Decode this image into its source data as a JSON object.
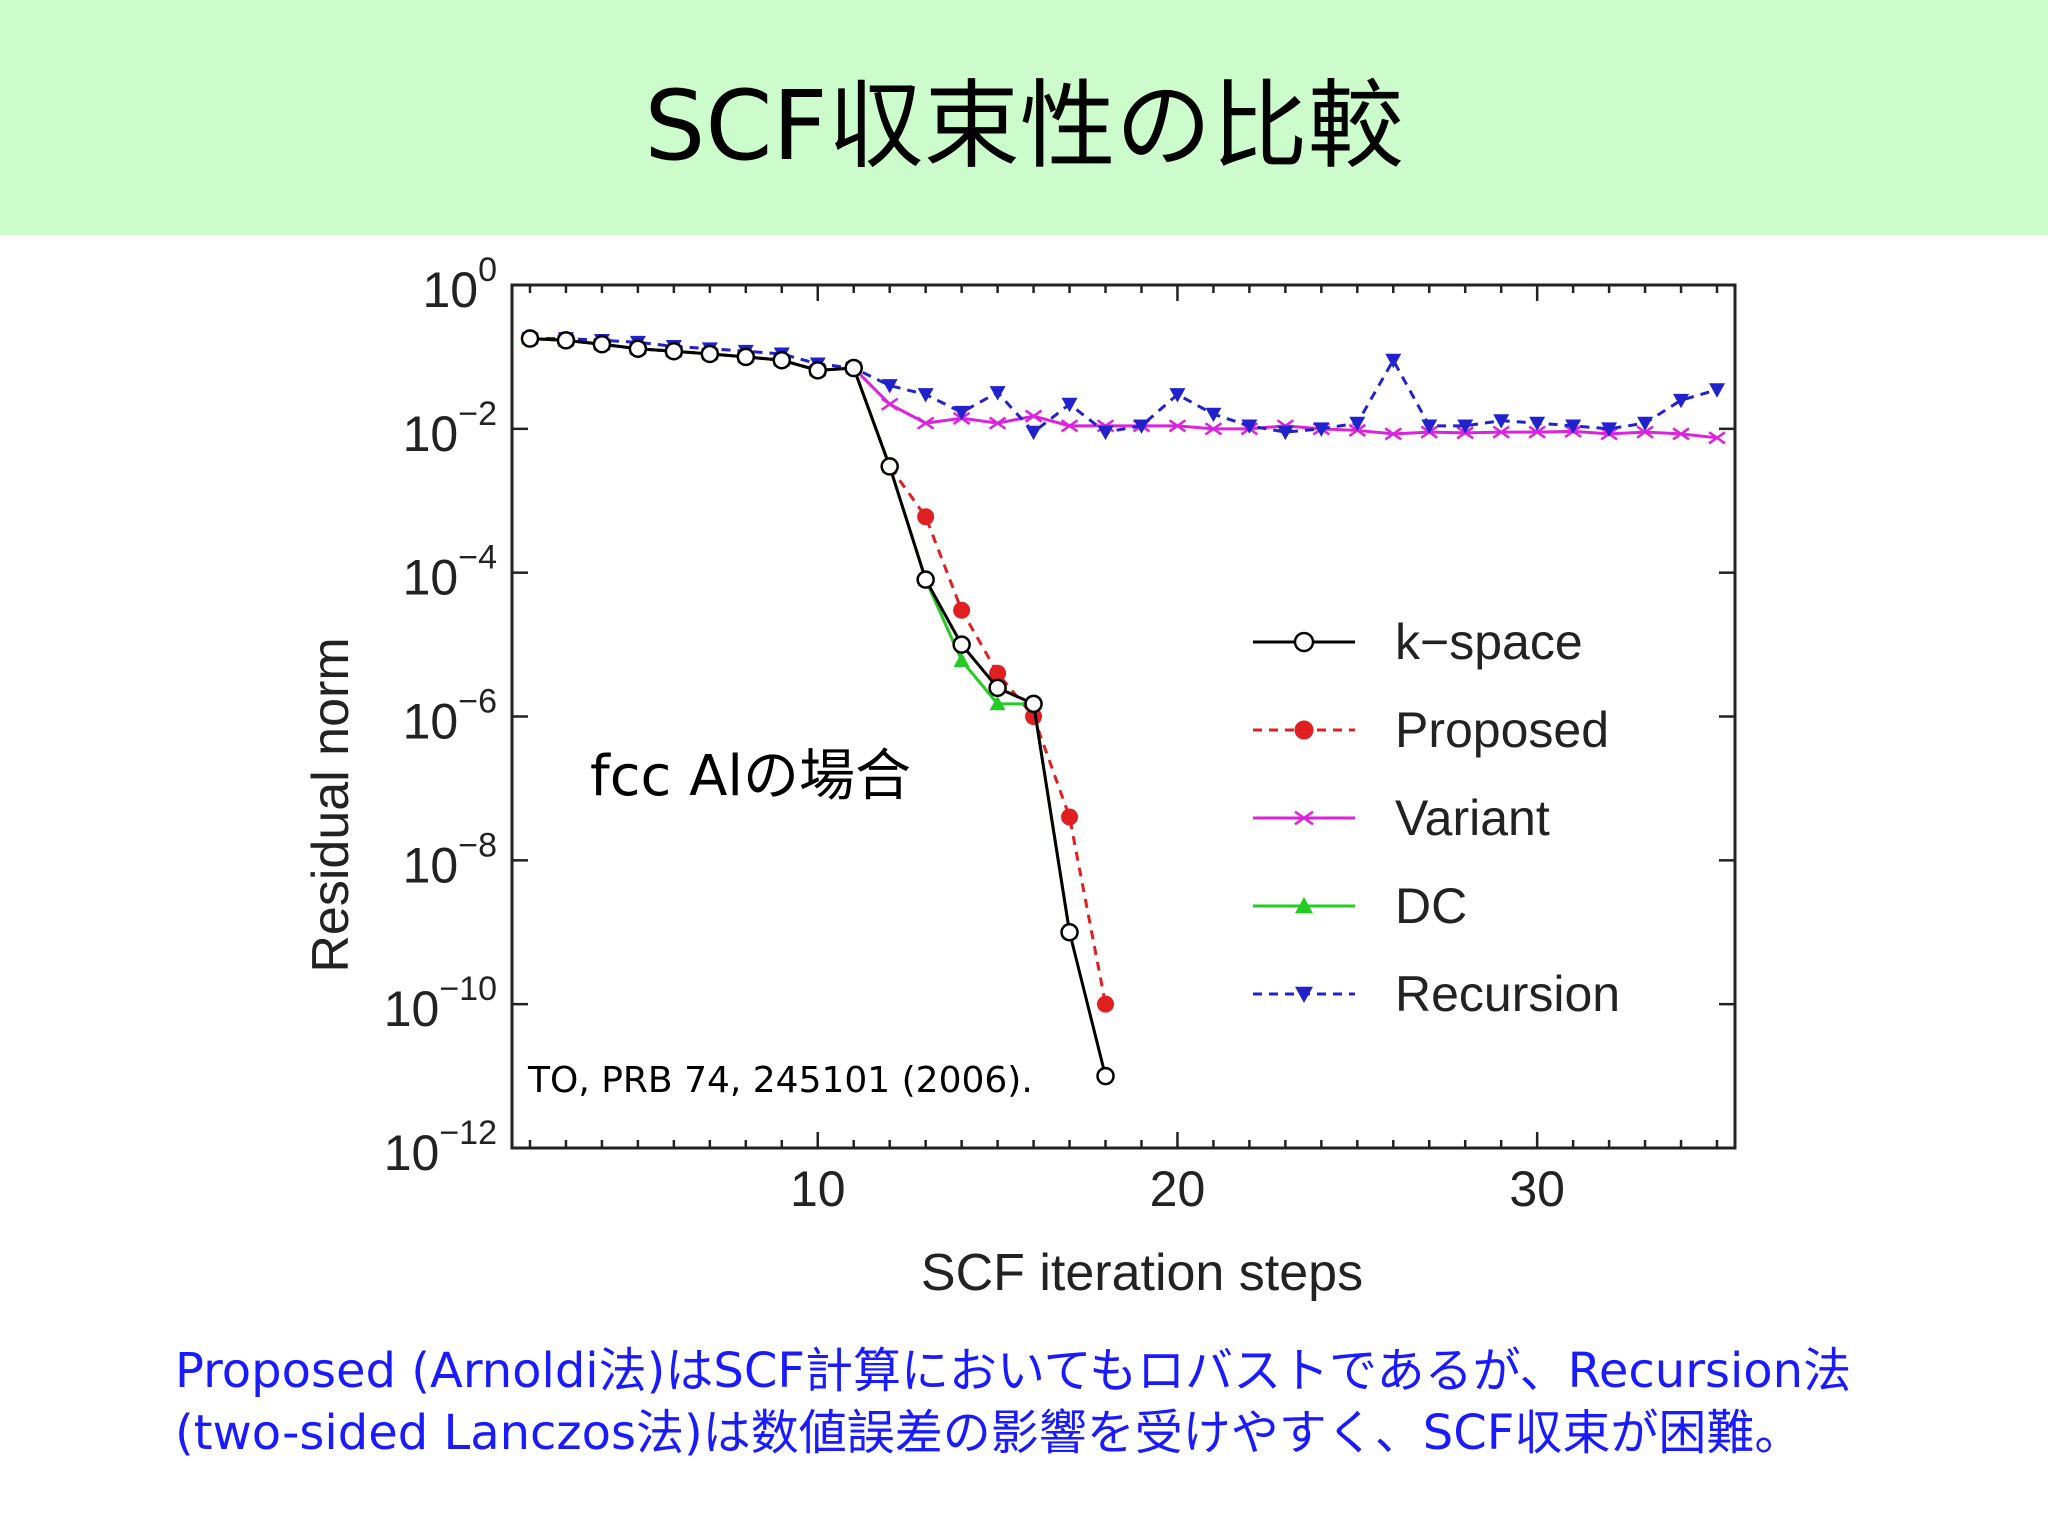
{
  "slide": {
    "title": "SCF収束性の比較",
    "caption_lines": [
      "Proposed (Arnoldi法)はSCF計算においてもロバストであるが、Recursion法",
      "(two-sided Lanczos法)は数値誤差の影響を受けやすく、SCF収束が困難。"
    ]
  },
  "colors": {
    "header_bg": "#ccfccc",
    "caption": "#1a1aff"
  },
  "chart_data": {
    "type": "line",
    "xlabel": "SCF iteration steps",
    "ylabel": "Residual norm",
    "xlim": [
      1.5,
      35.5
    ],
    "ylim_log10": [
      -12,
      0
    ],
    "y_scale": "log",
    "x_ticks": [
      10,
      20,
      30
    ],
    "x_tick_labels": [
      "10",
      "20",
      "30"
    ],
    "y_ticks_log10": [
      0,
      -2,
      -4,
      -6,
      -8,
      -10,
      -12
    ],
    "y_tick_mantissa": "10",
    "y_tick_exponents": [
      "0",
      "−2",
      "−4",
      "−6",
      "−8",
      "−10",
      "−12"
    ],
    "legend_position": "right",
    "annotations": {
      "inline_label": "fcc Alの場合",
      "citation": "TO, PRB 74, 245101 (2006)."
    },
    "series": [
      {
        "name": "k−space",
        "color": "#000000",
        "line_style": "solid",
        "marker": "circle-open",
        "x": [
          2,
          3,
          4,
          5,
          6,
          7,
          8,
          9,
          10,
          11,
          12,
          13,
          14,
          15,
          16,
          17,
          18
        ],
        "y": [
          0.18,
          0.17,
          0.15,
          0.13,
          0.12,
          0.11,
          0.1,
          0.09,
          0.065,
          0.07,
          0.003,
          8e-05,
          1e-05,
          2.5e-06,
          1.5e-06,
          1e-09,
          1e-11
        ]
      },
      {
        "name": "Proposed",
        "color": "#e02020",
        "line_style": "dashed",
        "marker": "circle-filled",
        "x": [
          2,
          3,
          4,
          5,
          6,
          7,
          8,
          9,
          10,
          11,
          12,
          13,
          14,
          15,
          16,
          17,
          18
        ],
        "y": [
          0.18,
          0.17,
          0.15,
          0.13,
          0.12,
          0.11,
          0.1,
          0.09,
          0.065,
          0.07,
          0.003,
          0.0006,
          3e-05,
          4e-06,
          1e-06,
          4e-08,
          1e-10
        ]
      },
      {
        "name": "Variant",
        "color": "#dd22dd",
        "line_style": "solid",
        "marker": "x",
        "x": [
          2,
          3,
          4,
          5,
          6,
          7,
          8,
          9,
          10,
          11,
          12,
          13,
          14,
          15,
          16,
          17,
          18,
          19,
          20,
          21,
          22,
          23,
          24,
          25,
          26,
          27,
          28,
          29,
          30,
          31,
          32,
          33,
          34,
          35
        ],
        "y": [
          0.18,
          0.17,
          0.15,
          0.13,
          0.12,
          0.11,
          0.1,
          0.09,
          0.065,
          0.07,
          0.022,
          0.012,
          0.014,
          0.012,
          0.015,
          0.011,
          0.011,
          0.011,
          0.011,
          0.01,
          0.01,
          0.011,
          0.01,
          0.0095,
          0.0085,
          0.009,
          0.0088,
          0.009,
          0.009,
          0.0092,
          0.0085,
          0.009,
          0.0085,
          0.0075
        ]
      },
      {
        "name": "DC",
        "color": "#22cc22",
        "line_style": "solid",
        "marker": "triangle-up",
        "x": [
          2,
          3,
          4,
          5,
          6,
          7,
          8,
          9,
          10,
          11,
          12,
          13,
          14,
          15,
          16,
          17
        ],
        "y": [
          0.18,
          0.17,
          0.15,
          0.13,
          0.12,
          0.11,
          0.1,
          0.09,
          0.065,
          0.07,
          0.003,
          8e-05,
          6e-06,
          1.5e-06,
          1.5e-06,
          1e-09
        ]
      },
      {
        "name": "Recursion",
        "color": "#2222cc",
        "line_style": "dashed",
        "marker": "triangle-down",
        "x": [
          2,
          3,
          4,
          5,
          6,
          7,
          8,
          9,
          10,
          11,
          12,
          13,
          14,
          15,
          16,
          17,
          18,
          19,
          20,
          21,
          22,
          23,
          24,
          25,
          26,
          27,
          28,
          29,
          30,
          31,
          32,
          33,
          34,
          35
        ],
        "y": [
          0.18,
          0.18,
          0.17,
          0.16,
          0.14,
          0.13,
          0.12,
          0.11,
          0.08,
          0.07,
          0.04,
          0.03,
          0.017,
          0.032,
          0.009,
          0.022,
          0.009,
          0.011,
          0.03,
          0.016,
          0.011,
          0.009,
          0.01,
          0.012,
          0.09,
          0.011,
          0.011,
          0.013,
          0.012,
          0.011,
          0.01,
          0.012,
          0.025,
          0.035
        ]
      }
    ]
  }
}
